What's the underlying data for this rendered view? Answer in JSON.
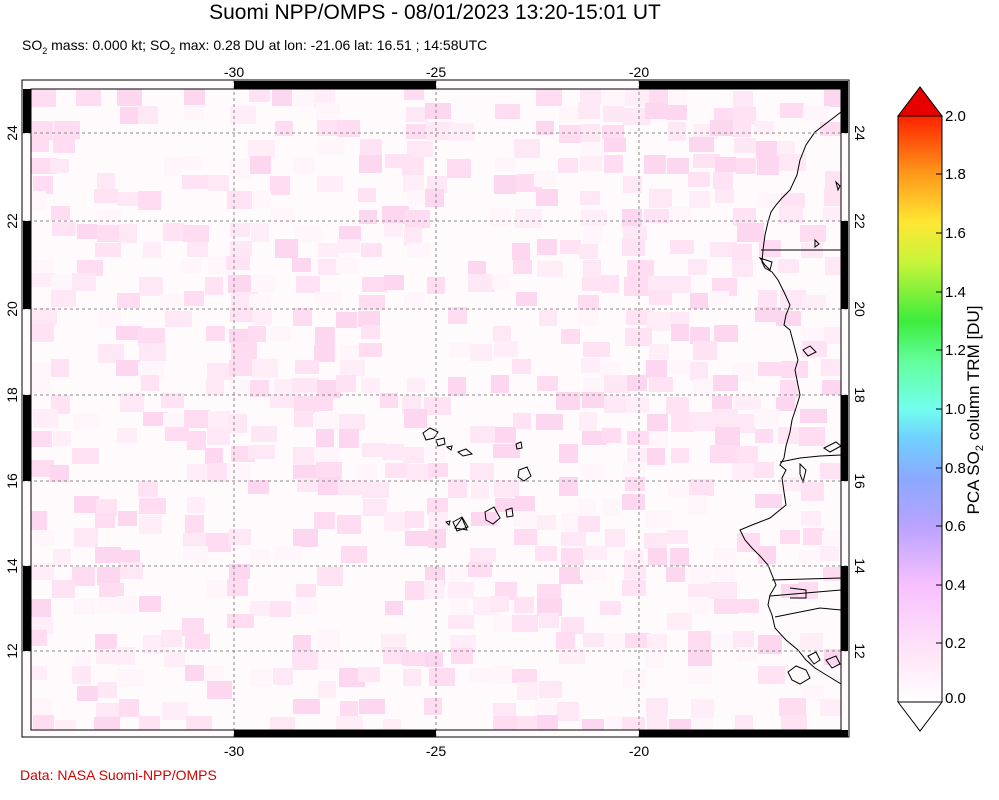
{
  "title": "Suomi NPP/OMPS - 08/01/2023 13:20-15:01 UT",
  "subtitle": {
    "so2_label_1": "SO",
    "sub_1": "2",
    "mass_text": " mass: 0.000 kt; SO",
    "sub_2": "2",
    "max_text": " max: 0.28 DU at lon: -21.06 lat: 16.51 ; 14:58UTC"
  },
  "credit": "Data: NASA Suomi-NPP/OMPS",
  "map": {
    "lon_ticks": [
      "-30",
      "-25",
      "-20"
    ],
    "lat_ticks": [
      "24",
      "22",
      "20",
      "18",
      "16",
      "14",
      "12"
    ],
    "lon_range": [
      -35,
      -14.7
    ],
    "lat_range": [
      10.2,
      25.1
    ]
  },
  "colorbar": {
    "title_pre": "PCA SO",
    "title_sub": "2",
    "title_post": " column TRM [DU]",
    "labels": [
      "2.0",
      "1.8",
      "1.6",
      "1.4",
      "1.2",
      "1.0",
      "0.8",
      "0.6",
      "0.4",
      "0.2",
      "0.0"
    ],
    "range": [
      0.0,
      2.0
    ],
    "colors": [
      "#ffffff",
      "#ffd0f5",
      "#d7a8ff",
      "#8fa8ff",
      "#6ad9ff",
      "#73ffe6",
      "#5cff7a",
      "#3ce83c",
      "#d8ff3c",
      "#ffe633",
      "#ff9a1a",
      "#ff3300",
      "#e60000"
    ]
  }
}
